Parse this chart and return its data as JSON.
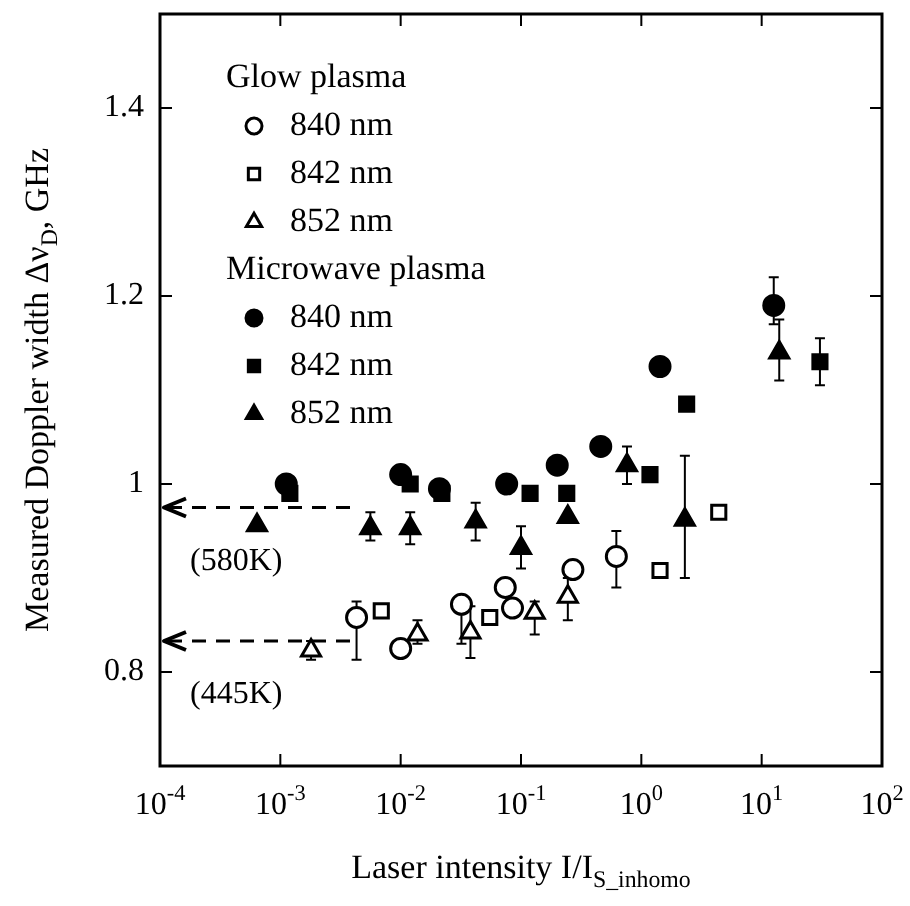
{
  "chart_data": {
    "type": "scatter",
    "xlabel": "Laser intensity I/I$_{S_inhomo}$",
    "ylabel": "Measured Doppler width Δν$_{D}$, GHz",
    "log": "x",
    "xlim": [
      0.0001,
      100
    ],
    "xticks": [
      {
        "value": 0.0001,
        "label": "10$^{-4}$"
      },
      {
        "value": 0.001,
        "label": "10$^{-3}$"
      },
      {
        "value": 0.01,
        "label": "10$^{-2}$"
      },
      {
        "value": 0.1,
        "label": "10$^{-1}$"
      },
      {
        "value": 1,
        "label": "10$^{0}$"
      },
      {
        "value": 10,
        "label": "10$^{1}$"
      },
      {
        "value": 100,
        "label": "10$^{2}$"
      }
    ],
    "ylim": [
      0.7,
      1.5
    ],
    "yticks": [
      0.8,
      1,
      1.2,
      1.4
    ],
    "grid": false,
    "legend": "top left",
    "annotations": [
      "Glow plasma",
      "Microwave plasma"
    ],
    "ref_lines": [
      {
        "axis": "y",
        "value": 0.975,
        "label": "(580K)",
        "line_style": "dashed"
      },
      {
        "axis": "y",
        "value": 0.833,
        "label": "(445K)",
        "line_style": "dashed"
      }
    ],
    "series": [
      {
        "name": "840 nm",
        "color": "#ffffff",
        "marker": "circle",
        "x": [
          0.0043,
          0.01,
          0.032,
          0.074,
          0.085,
          0.27,
          0.62
        ],
        "values": [
          0.858,
          0.825,
          0.872,
          0.89,
          0.868,
          0.909,
          0.923
        ],
        "errors": [
          [
            0.813,
            0.875
          ],
          null,
          [
            0.83,
            0.88
          ],
          null,
          null,
          null,
          [
            0.89,
            0.95
          ]
        ]
      },
      {
        "name": "842 nm",
        "color": "#ffffff",
        "marker": "square",
        "x": [
          0.0069,
          0.055,
          1.43,
          4.4
        ],
        "values": [
          0.865,
          0.858,
          0.908,
          0.97
        ]
      },
      {
        "name": "852 nm",
        "color": "#ffffff",
        "marker": "triangle",
        "x": [
          0.0018,
          0.0138,
          0.038,
          0.13,
          0.245
        ],
        "values": [
          0.823,
          0.84,
          0.842,
          0.863,
          0.88
        ],
        "errors": [
          [
            0.813,
            0.833
          ],
          [
            0.83,
            0.855
          ],
          [
            0.815,
            0.87
          ],
          [
            0.84,
            0.875
          ],
          [
            0.855,
            0.9
          ]
        ]
      },
      {
        "name": "840 nm",
        "color": "#000000",
        "marker": "circle",
        "x": [
          0.00112,
          0.01,
          0.021,
          0.076,
          0.2,
          0.46,
          1.43,
          12.6
        ],
        "values": [
          1.0,
          1.01,
          0.995,
          1.0,
          1.02,
          1.04,
          1.125,
          1.19
        ],
        "errors": [
          null,
          null,
          null,
          null,
          null,
          null,
          null,
          [
            1.17,
            1.22
          ]
        ]
      },
      {
        "name": "842 nm",
        "color": "#000000",
        "marker": "square",
        "x": [
          0.0012,
          0.012,
          0.022,
          0.119,
          0.24,
          1.18,
          2.38,
          30.5
        ],
        "values": [
          0.99,
          1.0,
          0.99,
          0.99,
          0.99,
          1.01,
          1.085,
          1.13
        ],
        "errors": [
          null,
          null,
          null,
          null,
          null,
          null,
          null,
          [
            1.105,
            1.155
          ]
        ]
      },
      {
        "name": "852 nm",
        "color": "#000000",
        "marker": "triangle",
        "x": [
          0.00064,
          0.0056,
          0.012,
          0.042,
          0.1,
          0.245,
          0.76,
          2.3,
          14
        ],
        "values": [
          0.956,
          0.953,
          0.953,
          0.96,
          0.932,
          0.965,
          1.02,
          0.962,
          1.14
        ],
        "errors": [
          null,
          [
            0.94,
            0.97
          ],
          [
            0.936,
            0.97
          ],
          [
            0.94,
            0.98
          ],
          [
            0.91,
            0.955
          ],
          null,
          [
            1.0,
            1.04
          ],
          [
            0.9,
            1.03
          ],
          [
            1.11,
            1.175
          ]
        ]
      }
    ]
  }
}
